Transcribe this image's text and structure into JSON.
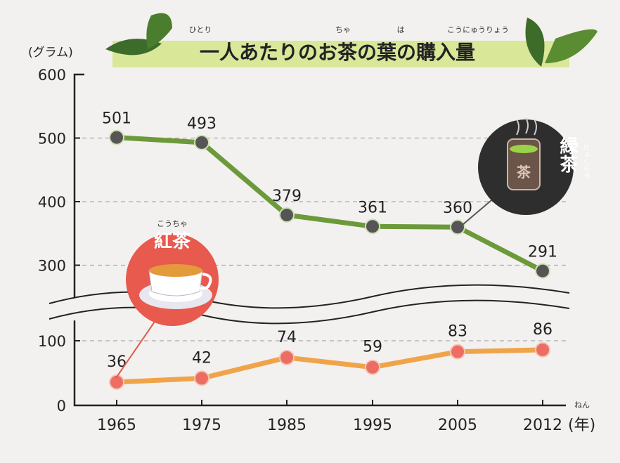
{
  "title": "一人あたりのお茶の葉の購入量",
  "title_ruby": {
    "hitori": "ひとり",
    "cha": "ちゃ",
    "ha": "は",
    "kounyuuryou": "こうにゅうりょう"
  },
  "y_unit": "(グラム)",
  "x_unit": "(年)",
  "x_unit_ruby": "ねん",
  "labels": {
    "green_tea": "緑茶",
    "green_tea_ruby": "りょくちゃ",
    "black_tea": "紅茶",
    "black_tea_ruby": "こうちゃ"
  },
  "colors": {
    "green": "#6c9a3a",
    "orange": "#f0a44a",
    "green_marker": "#555555",
    "orange_marker": "#ec6e63"
  },
  "chart_data": {
    "type": "line",
    "categories": [
      "1965",
      "1975",
      "1985",
      "1995",
      "2005",
      "2012"
    ],
    "yticks_upper": [
      "600",
      "500",
      "400",
      "300"
    ],
    "yticks_lower": [
      "100",
      "0"
    ],
    "axis_break": true,
    "grid": "dashed horizontal",
    "series": [
      {
        "name": "緑茶",
        "values": [
          501,
          493,
          379,
          361,
          360,
          291
        ]
      },
      {
        "name": "紅茶",
        "values": [
          36,
          42,
          74,
          59,
          83,
          86
        ]
      }
    ]
  }
}
